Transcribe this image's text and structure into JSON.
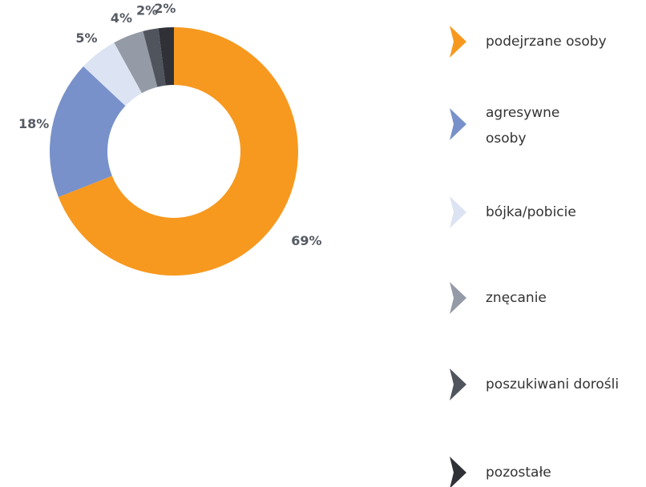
{
  "chart_data": {
    "type": "donut",
    "categories": [
      "podejrzane osoby",
      "agresywne osoby",
      "bójka/pobicie",
      "znęcanie",
      "poszukiwani dorośli",
      "pozostałe"
    ],
    "values": [
      69,
      18,
      5,
      4,
      2,
      2
    ],
    "value_labels": [
      "69%",
      "18%",
      "5%",
      "4%",
      "2%",
      "2%"
    ],
    "colors": [
      "#f7991f",
      "#7891ca",
      "#dce3f2",
      "#959aa7",
      "#50545d",
      "#2f3136"
    ],
    "legend": "right"
  }
}
